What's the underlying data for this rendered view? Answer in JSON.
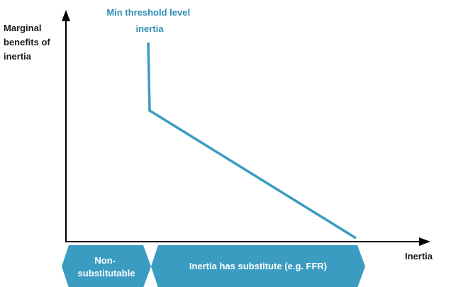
{
  "colors": {
    "curve": "#3a9cc0",
    "band": "#3a9cc0",
    "axis": "#000000",
    "annotation": "#2e8fb5"
  },
  "y_axis_label": [
    "Marginal",
    "benefits of",
    "inertia"
  ],
  "x_axis_label": "Inertia",
  "threshold_annotation": [
    "Min threshold level",
    "inertia"
  ],
  "bands": [
    {
      "label": [
        "Non-",
        "substitutable"
      ]
    },
    {
      "label": [
        "Inertia has substitute (e.g. FFR)"
      ]
    }
  ]
}
